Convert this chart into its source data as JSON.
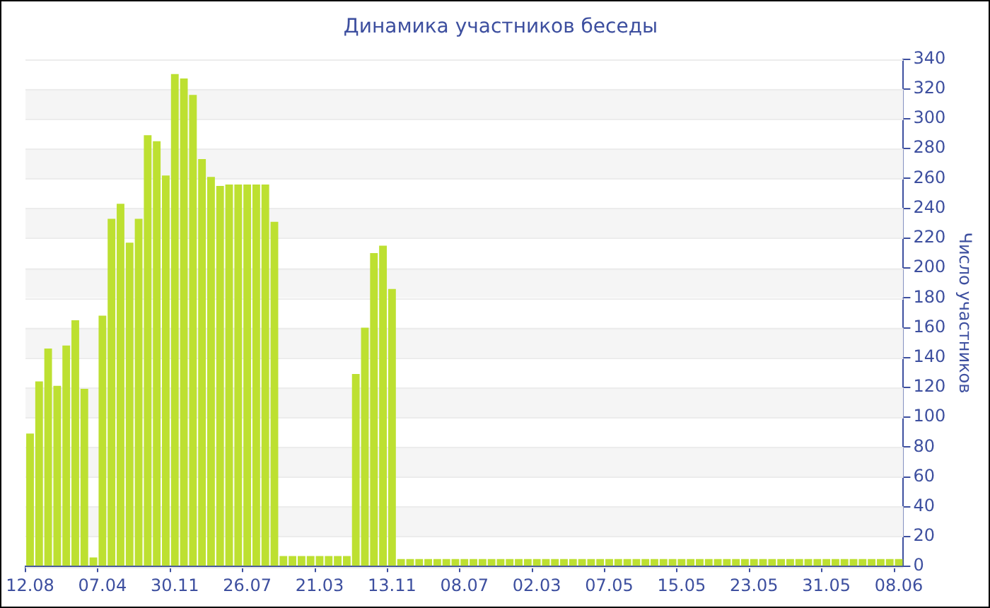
{
  "chart_data": {
    "type": "bar",
    "title": "Динамика участников беседы",
    "ylabel": "Число участников",
    "categories": [
      "12.08",
      null,
      null,
      null,
      null,
      null,
      null,
      null,
      "07.04",
      null,
      null,
      null,
      null,
      null,
      null,
      null,
      "30.11",
      null,
      null,
      null,
      null,
      null,
      null,
      null,
      "26.07",
      null,
      null,
      null,
      null,
      null,
      null,
      null,
      "21.03",
      null,
      null,
      null,
      null,
      null,
      null,
      null,
      "13.11",
      null,
      null,
      null,
      null,
      null,
      null,
      null,
      "08.07",
      null,
      null,
      null,
      null,
      null,
      null,
      null,
      "02.03",
      null,
      null,
      null,
      null,
      null,
      null,
      null,
      "07.05",
      null,
      null,
      null,
      null,
      null,
      null,
      null,
      "15.05",
      null,
      null,
      null,
      null,
      null,
      null,
      null,
      "23.05",
      null,
      null,
      null,
      null,
      null,
      null,
      null,
      "31.05",
      null,
      null,
      null,
      null,
      null,
      null,
      null,
      "08.06"
    ],
    "values": [
      89,
      124,
      146,
      121,
      148,
      165,
      119,
      6,
      168,
      233,
      243,
      217,
      233,
      289,
      285,
      262,
      330,
      327,
      316,
      273,
      261,
      255,
      256,
      256,
      256,
      256,
      256,
      231,
      7,
      7,
      7,
      7,
      7,
      7,
      7,
      7,
      129,
      160,
      210,
      215,
      186,
      5,
      5,
      5,
      5,
      5,
      5,
      5,
      5,
      5,
      5,
      5,
      5,
      5,
      5,
      5,
      5,
      5,
      5,
      5,
      5,
      5,
      5,
      5,
      5,
      5,
      5,
      5,
      5,
      5,
      5,
      5,
      5,
      5,
      5,
      5,
      5,
      5,
      5,
      5,
      5,
      5,
      5,
      5,
      5,
      5,
      5,
      5,
      5,
      5,
      5,
      5,
      5,
      5,
      5,
      5,
      5
    ],
    "color": "#bde031",
    "ylim": [
      0,
      340
    ],
    "yticks": [
      0,
      20,
      40,
      60,
      80,
      100,
      120,
      140,
      160,
      180,
      200,
      220,
      240,
      260,
      280,
      300,
      320,
      340
    ],
    "grid": "y"
  }
}
